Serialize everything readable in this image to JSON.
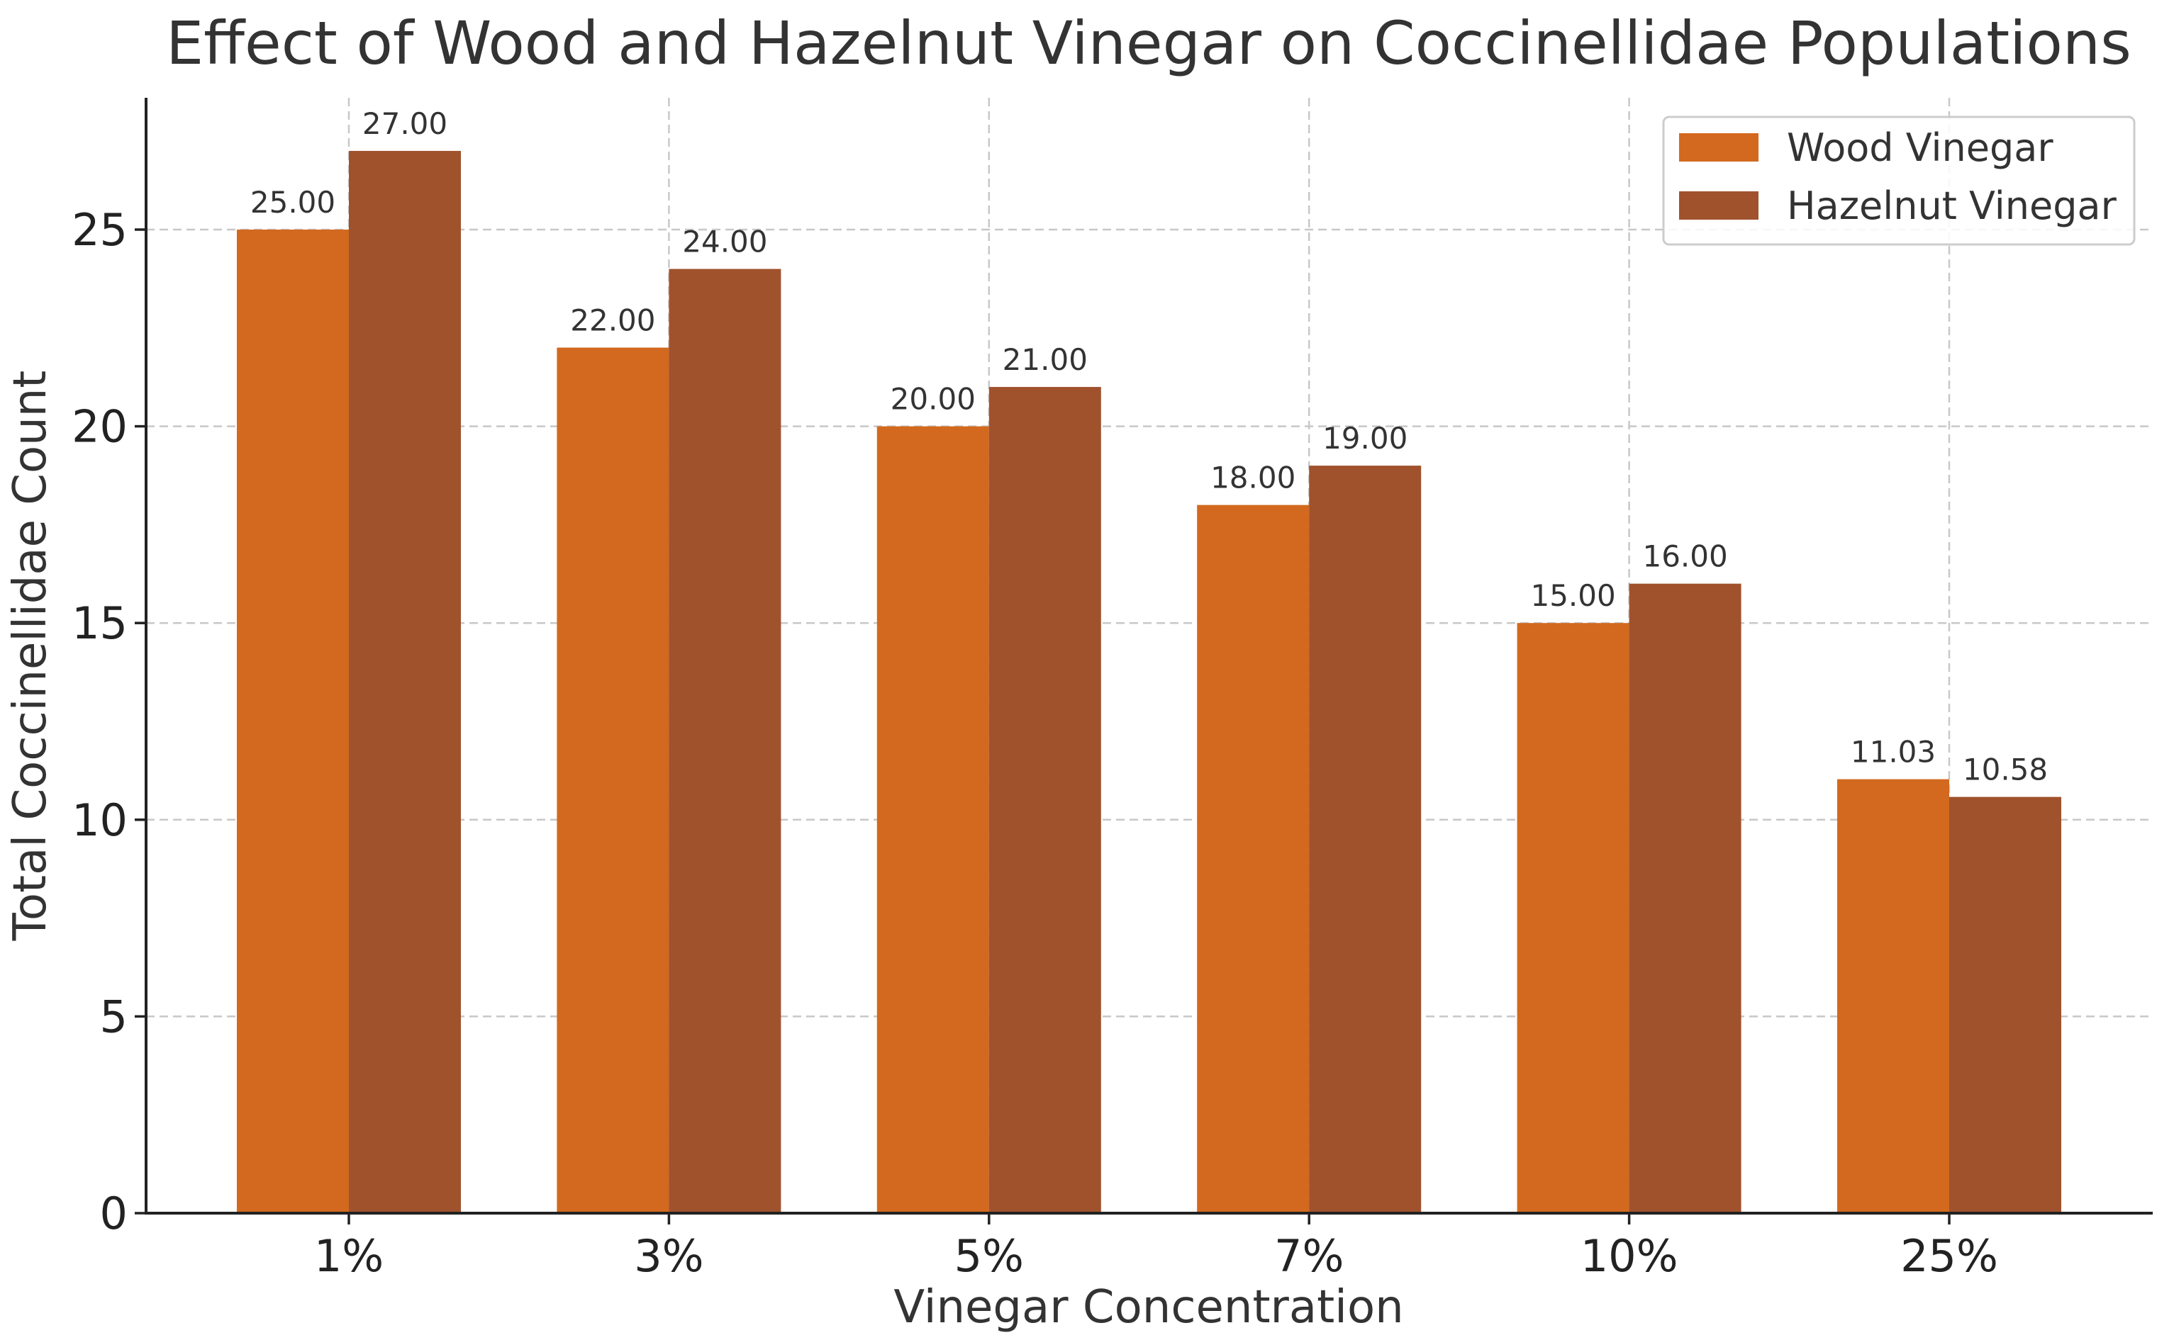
{
  "colors": {
    "wood": "#D2691E",
    "hazelnut": "#A0522D",
    "grid": "#c8c8c8",
    "text": "#333333"
  },
  "chart_data": {
    "type": "bar",
    "title": "Effect of Wood and Hazelnut Vinegar on Coccinellidae Populations",
    "xlabel": "Vinegar Concentration",
    "ylabel": "Total Coccinellidae Count",
    "categories": [
      "1%",
      "3%",
      "5%",
      "7%",
      "10%",
      "25%"
    ],
    "series": [
      {
        "name": "Wood Vinegar",
        "values": [
          25.0,
          22.0,
          20.0,
          18.0,
          15.0,
          11.03
        ],
        "labels": [
          "25.00",
          "22.00",
          "20.00",
          "18.00",
          "15.00",
          "11.03"
        ]
      },
      {
        "name": "Hazelnut Vinegar",
        "values": [
          27.0,
          24.0,
          21.0,
          19.0,
          16.0,
          10.58
        ],
        "labels": [
          "27.00",
          "24.00",
          "21.00",
          "19.00",
          "16.00",
          "10.58"
        ]
      }
    ],
    "ylim": [
      0,
      28.35
    ],
    "yticks": [
      0,
      5,
      10,
      15,
      20,
      25
    ],
    "ytick_labels": [
      "0",
      "5",
      "10",
      "15",
      "20",
      "25"
    ],
    "grid": true,
    "legend": "top-right"
  }
}
